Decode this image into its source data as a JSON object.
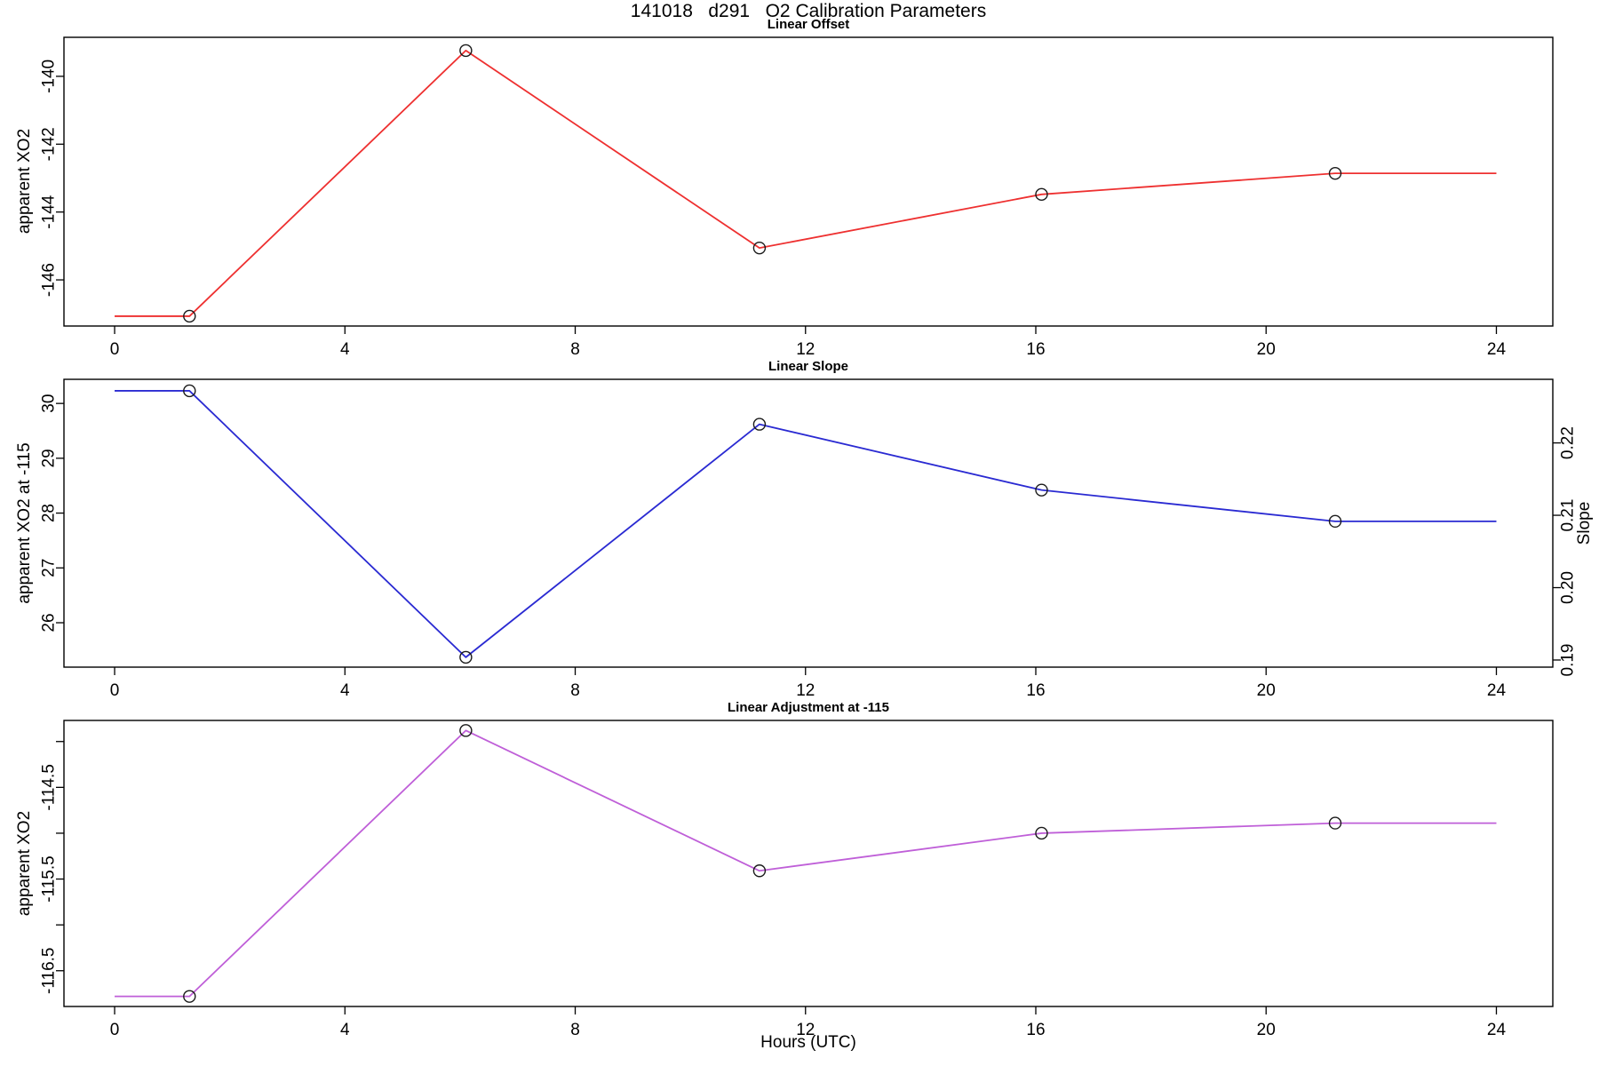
{
  "figure": {
    "title": "141018   d291   O2 Calibration Parameters",
    "xaxis_label": "Hours (UTC)"
  },
  "chart_data": [
    {
      "type": "line",
      "title": "Linear Offset",
      "ylabel": "apparent XO2",
      "line_color": "#ee3030",
      "marker": "open-circle",
      "x": [
        1.3,
        6.1,
        11.2,
        16.1,
        21.2
      ],
      "y": [
        -147.07,
        -139.24,
        -145.06,
        -143.48,
        -142.86
      ],
      "extend_x": [
        0,
        24
      ],
      "xlim": [
        -0.88,
        24.98
      ],
      "ylim": [
        -147.36,
        -138.85
      ],
      "xticks": [
        0,
        4,
        8,
        12,
        16,
        20,
        24
      ],
      "yticks": [
        {
          "v": -140,
          "label": "-140"
        },
        {
          "v": -142,
          "label": "-142"
        },
        {
          "v": -144,
          "label": "-144"
        },
        {
          "v": -146,
          "label": "-146"
        }
      ]
    },
    {
      "type": "line",
      "title": "Linear Slope",
      "ylabel": "apparent XO2 at -115",
      "ylabel_right": "Slope",
      "line_color": "#2a2ad2",
      "marker": "open-circle",
      "x": [
        1.3,
        6.1,
        11.2,
        16.1,
        21.2
      ],
      "y": [
        30.23,
        25.37,
        29.62,
        28.42,
        27.85
      ],
      "extend_x": [
        0,
        24
      ],
      "xlim": [
        -0.88,
        24.98
      ],
      "ylim": [
        25.19,
        30.44
      ],
      "xticks": [
        0,
        4,
        8,
        12,
        16,
        20,
        24
      ],
      "yticks": [
        {
          "v": 26,
          "label": "26"
        },
        {
          "v": 27,
          "label": "27"
        },
        {
          "v": 28,
          "label": "28"
        },
        {
          "v": 29,
          "label": "29"
        },
        {
          "v": 30,
          "label": "30"
        }
      ],
      "yticks_right": [
        {
          "v": 25.32,
          "label": "0.19"
        },
        {
          "v": 26.64,
          "label": "0.20"
        },
        {
          "v": 27.96,
          "label": "0.21"
        },
        {
          "v": 29.28,
          "label": "0.22"
        }
      ]
    },
    {
      "type": "line",
      "title": "Linear Adjustment at -115",
      "ylabel": "apparent XO2",
      "line_color": "#bf5fd8",
      "marker": "open-circle",
      "x": [
        1.3,
        6.1,
        11.2,
        16.1,
        21.2
      ],
      "y": [
        -116.78,
        -113.88,
        -115.41,
        -115.0,
        -114.89
      ],
      "extend_x": [
        0,
        24
      ],
      "xlim": [
        -0.88,
        24.98
      ],
      "ylim": [
        -116.89,
        -113.77
      ],
      "xticks": [
        0,
        4,
        8,
        12,
        16,
        20,
        24
      ],
      "yticks": [
        {
          "v": -114,
          "label": ""
        },
        {
          "v": -114.5,
          "label": "-114.5"
        },
        {
          "v": -115,
          "label": ""
        },
        {
          "v": -115.5,
          "label": "-115.5"
        },
        {
          "v": -116,
          "label": ""
        },
        {
          "v": -116.5,
          "label": "-116.5"
        }
      ]
    }
  ]
}
